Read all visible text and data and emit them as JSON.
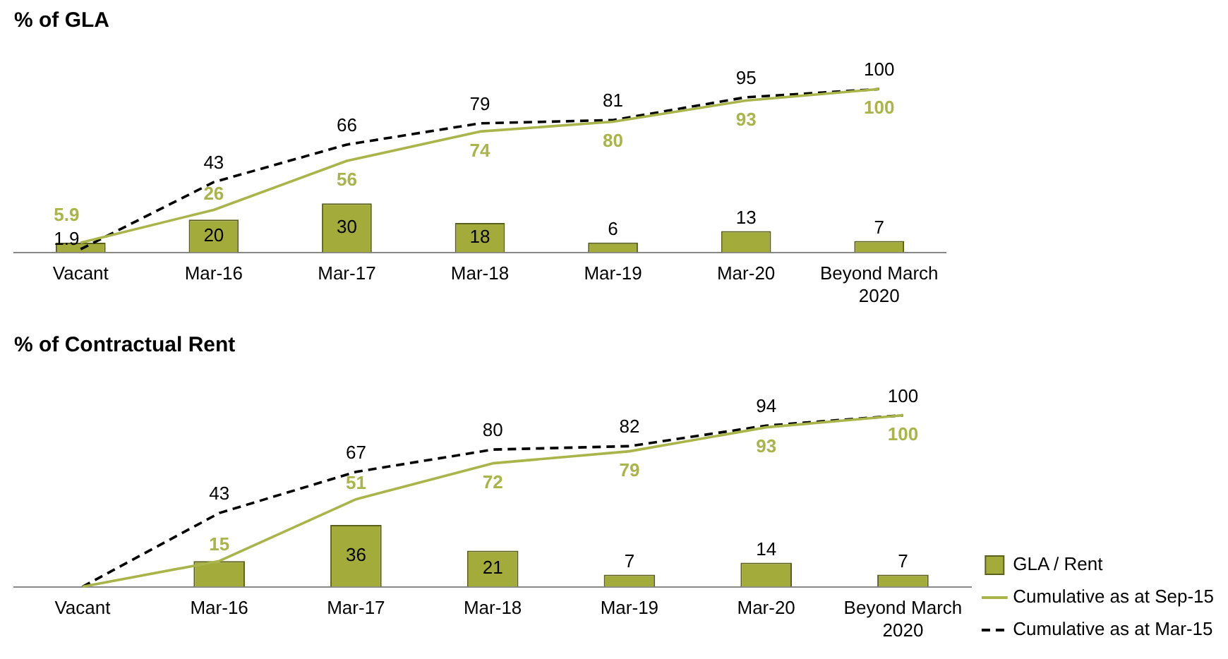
{
  "chart_data": [
    {
      "type": "bar",
      "title": "% of GLA",
      "categories": [
        "Vacant",
        "Mar-16",
        "Mar-17",
        "Mar-18",
        "Mar-19",
        "Mar-20",
        "Beyond March 2020"
      ],
      "series": [
        {
          "color": "#a3ab3b",
          "values": [
            5.9,
            20,
            30,
            18,
            6,
            13,
            7
          ],
          "value_labels": [
            null,
            "20",
            "30",
            "18",
            "6",
            "13",
            "7"
          ]
        },
        {
          "type": "line",
          "color": "#a9b54a",
          "line_style": "solid",
          "values": [
            5.9,
            26,
            56,
            74,
            80,
            93,
            100
          ],
          "value_labels": [
            "5.9",
            "26",
            "56",
            "74",
            "80",
            "93",
            "100"
          ]
        },
        {
          "type": "line",
          "color": "#000000",
          "line_style": "dashed",
          "values": [
            1.9,
            43,
            66,
            79,
            81,
            95,
            100
          ],
          "value_labels": [
            "1.9",
            "43",
            "66",
            "79",
            "81",
            "95",
            "100"
          ]
        }
      ],
      "legend": false,
      "grid": false,
      "marker": "none",
      "tick_labels": "x"
    },
    {
      "type": "bar",
      "title": "% of Contractual Rent",
      "categories": [
        "Vacant",
        "Mar-16",
        "Mar-17",
        "Mar-18",
        "Mar-19",
        "Mar-20",
        "Beyond March 2020"
      ],
      "series": [
        {
          "name": "GLA / Rent",
          "color": "#a3ab3b",
          "values": [
            null,
            15,
            36,
            21,
            7,
            14,
            7
          ],
          "value_labels": [
            null,
            null,
            "36",
            "21",
            "7",
            "14",
            "7"
          ]
        },
        {
          "type": "line",
          "name": "Cumulative as at Sep-15",
          "color": "#a9b54a",
          "line_style": "solid",
          "values": [
            0,
            15,
            51,
            72,
            79,
            93,
            100
          ],
          "value_labels": [
            null,
            "15",
            "51",
            "72",
            "79",
            "93",
            "100"
          ]
        },
        {
          "type": "line",
          "name": "Cumulative as at Mar-15",
          "color": "#000000",
          "line_style": "dashed",
          "values": [
            0,
            43,
            67,
            80,
            82,
            94,
            100
          ],
          "value_labels": [
            null,
            "43",
            "67",
            "80",
            "82",
            "94",
            "100"
          ]
        }
      ],
      "legend": "bottom right",
      "grid": false,
      "marker": "none",
      "tick_labels": "x"
    }
  ]
}
